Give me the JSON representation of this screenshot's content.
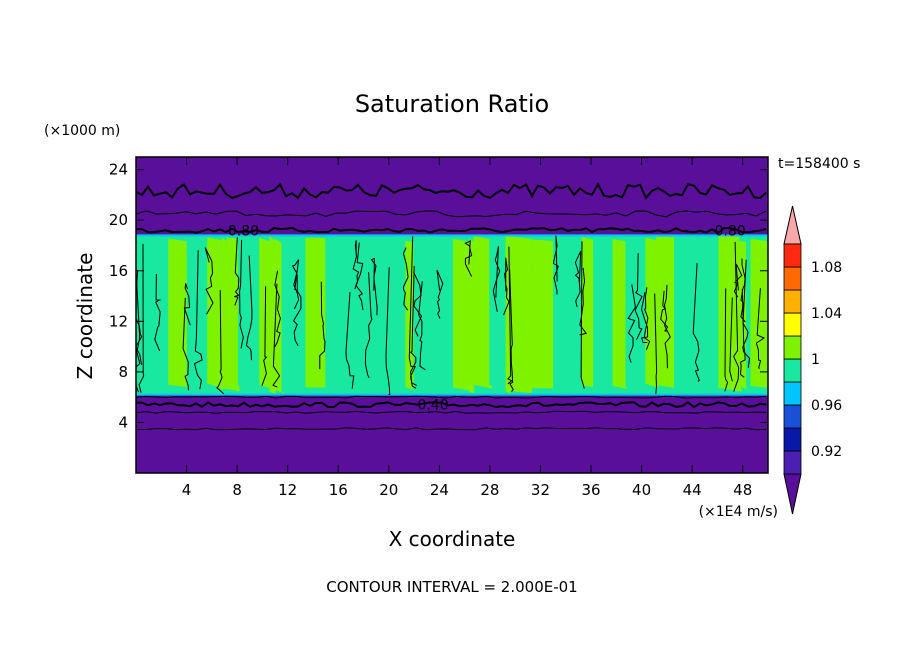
{
  "chart_data": {
    "type": "heatmap",
    "title": "Saturation Ratio",
    "xlabel": "X coordinate",
    "ylabel": "Z coordinate",
    "x_unit": "(×1E4 m/s)",
    "y_unit": "(×1000 m)",
    "time_label": "t=158400 s",
    "footer": "CONTOUR INTERVAL = 2.000E-01",
    "xlim": [
      0,
      50
    ],
    "ylim": [
      0,
      25
    ],
    "x_ticks": [
      4,
      8,
      12,
      16,
      20,
      24,
      28,
      32,
      36,
      40,
      44,
      48
    ],
    "y_ticks": [
      4,
      8,
      12,
      16,
      20,
      24
    ],
    "cloud_layer": {
      "base_km": 6.2,
      "top_km": 18.8,
      "value_range": [
        0.98,
        1.02
      ]
    },
    "contour_lines": [
      {
        "level": 0.4,
        "label": "0.40",
        "z_km": 5.4
      },
      {
        "level": 0.8,
        "label": "0.80",
        "z_km": 19.2
      },
      {
        "level": 0.6,
        "label": "",
        "z_km": 22.3
      }
    ],
    "colorbar": {
      "levels": [
        "0.92",
        "0.96",
        "1",
        "1.04",
        "1.08"
      ],
      "colors": [
        "#5a0f9a",
        "#4b1fb0",
        "#0a18a8",
        "#1a4fd8",
        "#00c6ff",
        "#18e8a0",
        "#7ff200",
        "#ffff00",
        "#ffb000",
        "#ff6a00",
        "#ff2a10",
        "#f8a8a8"
      ]
    }
  }
}
